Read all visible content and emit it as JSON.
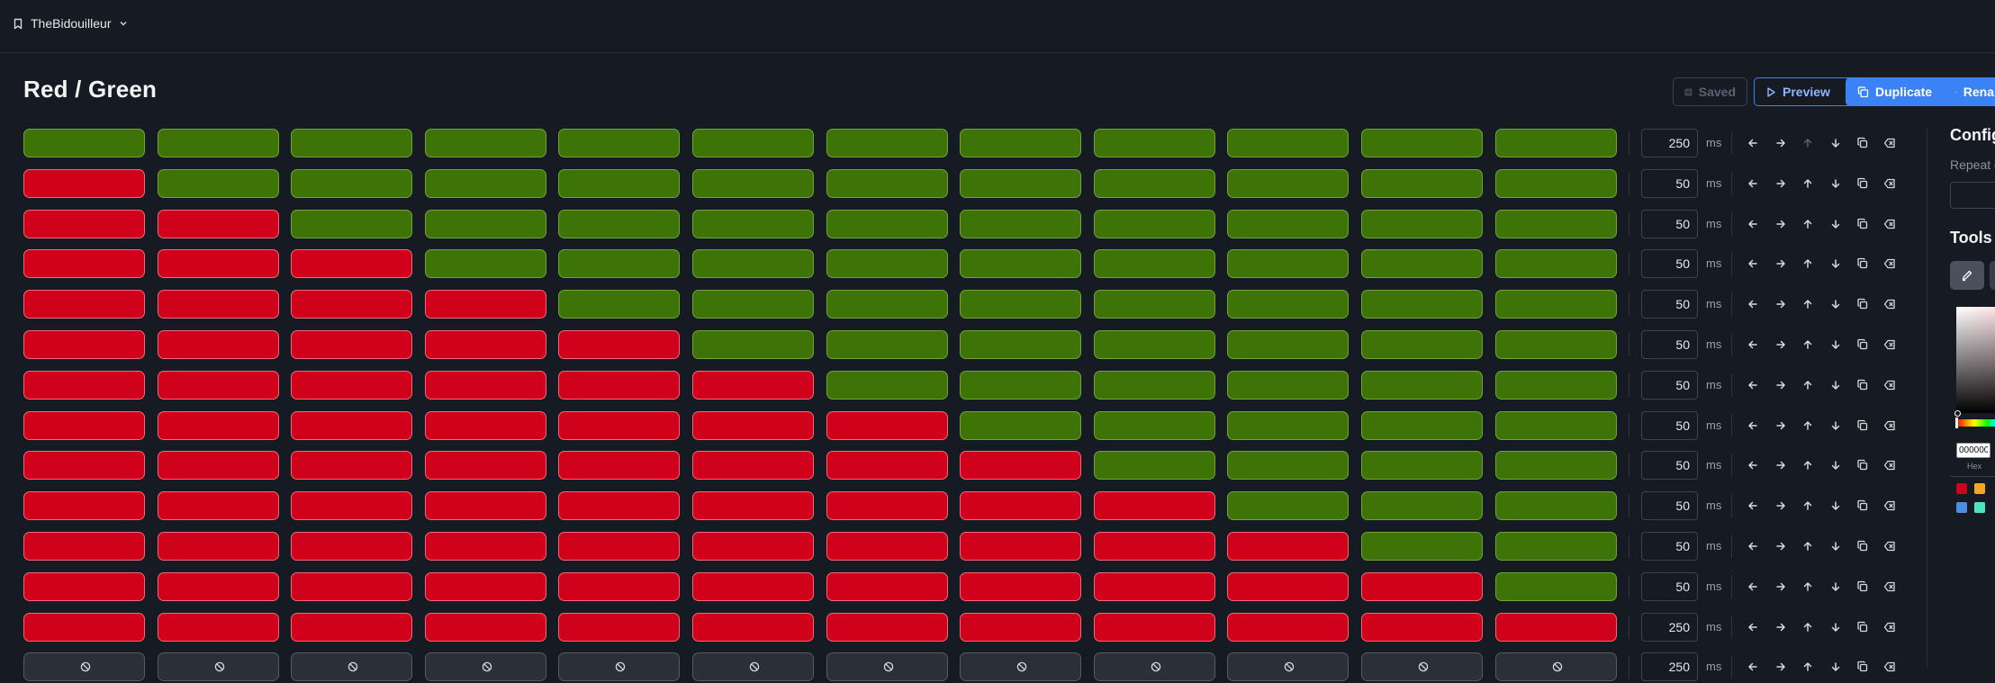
{
  "topbar": {
    "project_name": "TheBidouilleur"
  },
  "header": {
    "title": "Red / Green",
    "buttons": {
      "saved": "Saved",
      "preview": "Preview",
      "duplicate": "Duplicate",
      "rename": "Rena"
    }
  },
  "colors": {
    "green": "#3e7308",
    "red": "#d0021b",
    "accent": "#3b82f6"
  },
  "frames": [
    {
      "cells": [
        "green",
        "green",
        "green",
        "green",
        "green",
        "green",
        "green",
        "green",
        "green",
        "green",
        "green",
        "green"
      ],
      "duration": "250"
    },
    {
      "cells": [
        "red",
        "green",
        "green",
        "green",
        "green",
        "green",
        "green",
        "green",
        "green",
        "green",
        "green",
        "green"
      ],
      "duration": "50"
    },
    {
      "cells": [
        "red",
        "red",
        "green",
        "green",
        "green",
        "green",
        "green",
        "green",
        "green",
        "green",
        "green",
        "green"
      ],
      "duration": "50"
    },
    {
      "cells": [
        "red",
        "red",
        "red",
        "green",
        "green",
        "green",
        "green",
        "green",
        "green",
        "green",
        "green",
        "green"
      ],
      "duration": "50"
    },
    {
      "cells": [
        "red",
        "red",
        "red",
        "red",
        "green",
        "green",
        "green",
        "green",
        "green",
        "green",
        "green",
        "green"
      ],
      "duration": "50"
    },
    {
      "cells": [
        "red",
        "red",
        "red",
        "red",
        "red",
        "green",
        "green",
        "green",
        "green",
        "green",
        "green",
        "green"
      ],
      "duration": "50"
    },
    {
      "cells": [
        "red",
        "red",
        "red",
        "red",
        "red",
        "red",
        "green",
        "green",
        "green",
        "green",
        "green",
        "green"
      ],
      "duration": "50"
    },
    {
      "cells": [
        "red",
        "red",
        "red",
        "red",
        "red",
        "red",
        "red",
        "green",
        "green",
        "green",
        "green",
        "green"
      ],
      "duration": "50"
    },
    {
      "cells": [
        "red",
        "red",
        "red",
        "red",
        "red",
        "red",
        "red",
        "red",
        "green",
        "green",
        "green",
        "green"
      ],
      "duration": "50"
    },
    {
      "cells": [
        "red",
        "red",
        "red",
        "red",
        "red",
        "red",
        "red",
        "red",
        "red",
        "green",
        "green",
        "green"
      ],
      "duration": "50"
    },
    {
      "cells": [
        "red",
        "red",
        "red",
        "red",
        "red",
        "red",
        "red",
        "red",
        "red",
        "red",
        "green",
        "green"
      ],
      "duration": "50"
    },
    {
      "cells": [
        "red",
        "red",
        "red",
        "red",
        "red",
        "red",
        "red",
        "red",
        "red",
        "red",
        "red",
        "green"
      ],
      "duration": "50"
    },
    {
      "cells": [
        "red",
        "red",
        "red",
        "red",
        "red",
        "red",
        "red",
        "red",
        "red",
        "red",
        "red",
        "red"
      ],
      "duration": "250"
    },
    {
      "cells": [
        "off",
        "off",
        "off",
        "off",
        "off",
        "off",
        "off",
        "off",
        "off",
        "off",
        "off",
        "off"
      ],
      "duration": "250"
    }
  ],
  "duration_unit": "ms",
  "frame_controls": [
    "arrow-left-icon",
    "arrow-right-icon",
    "arrow-up-icon",
    "arrow-down-icon",
    "copy-icon",
    "delete-icon"
  ],
  "sidebar": {
    "config_heading": "Config",
    "repeat_label": "Repeat c",
    "repeat_value": "",
    "tools_heading": "Tools",
    "color_picker": {
      "hex_value": "000000",
      "hex_label": "Hex"
    },
    "swatches": [
      "#d0021b",
      "#f5a623",
      "#4a90e2",
      "#50e3c2"
    ]
  }
}
